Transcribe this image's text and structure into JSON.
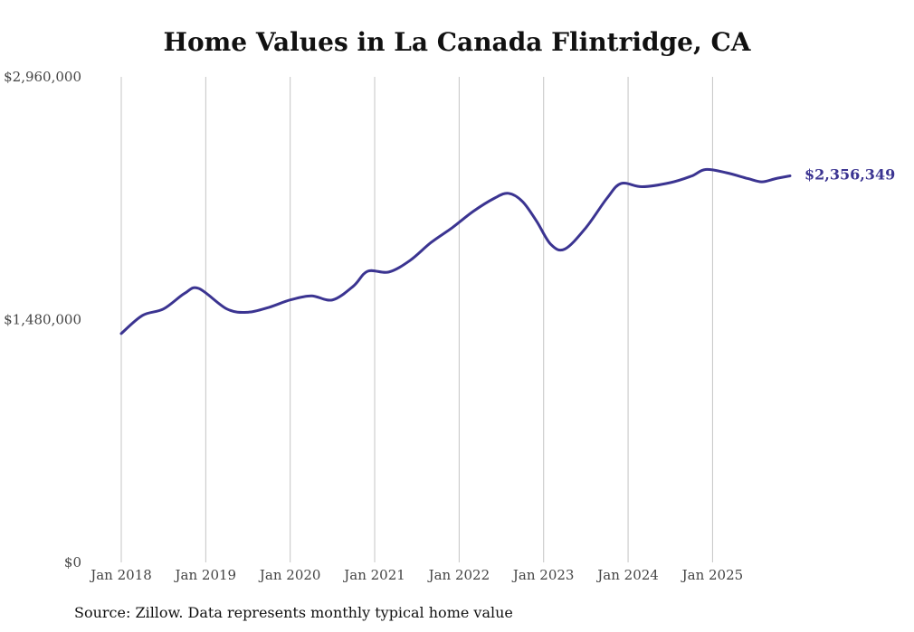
{
  "chart_data": {
    "type": "line",
    "title": "Home Values in La Canada Flintridge, CA",
    "source": "Source: Zillow. Data represents monthly typical home value",
    "xlabel": "",
    "ylabel": "",
    "x_start": 2018.0,
    "x_end": 2025.917,
    "x_ticks": [
      {
        "value": 2018,
        "label": "Jan 2018"
      },
      {
        "value": 2019,
        "label": "Jan 2019"
      },
      {
        "value": 2020,
        "label": "Jan 2020"
      },
      {
        "value": 2021,
        "label": "Jan 2021"
      },
      {
        "value": 2022,
        "label": "Jan 2022"
      },
      {
        "value": 2023,
        "label": "Jan 2023"
      },
      {
        "value": 2024,
        "label": "Jan 2024"
      },
      {
        "value": 2025,
        "label": "Jan 2025"
      }
    ],
    "y_ticks": [
      {
        "value": 0,
        "label": "$0"
      },
      {
        "value": 1480000,
        "label": "$1,480,000"
      },
      {
        "value": 2960000,
        "label": "$2,960,000"
      }
    ],
    "ylim": [
      0,
      2960000
    ],
    "grid": "vertical",
    "color": "#3b3491",
    "end_label": "$2,356,349",
    "series": [
      {
        "name": "Home value",
        "points": [
          [
            2018.0,
            1395000
          ],
          [
            2018.25,
            1505000
          ],
          [
            2018.5,
            1545000
          ],
          [
            2018.75,
            1640000
          ],
          [
            2018.917,
            1670000
          ],
          [
            2019.25,
            1545000
          ],
          [
            2019.5,
            1525000
          ],
          [
            2019.75,
            1555000
          ],
          [
            2020.0,
            1600000
          ],
          [
            2020.25,
            1625000
          ],
          [
            2020.5,
            1600000
          ],
          [
            2020.75,
            1685000
          ],
          [
            2020.917,
            1775000
          ],
          [
            2021.167,
            1770000
          ],
          [
            2021.417,
            1840000
          ],
          [
            2021.667,
            1950000
          ],
          [
            2021.917,
            2040000
          ],
          [
            2022.167,
            2140000
          ],
          [
            2022.417,
            2220000
          ],
          [
            2022.583,
            2250000
          ],
          [
            2022.75,
            2200000
          ],
          [
            2022.917,
            2080000
          ],
          [
            2023.083,
            1940000
          ],
          [
            2023.25,
            1910000
          ],
          [
            2023.5,
            2040000
          ],
          [
            2023.75,
            2220000
          ],
          [
            2023.917,
            2310000
          ],
          [
            2024.167,
            2290000
          ],
          [
            2024.5,
            2315000
          ],
          [
            2024.75,
            2355000
          ],
          [
            2024.917,
            2395000
          ],
          [
            2025.167,
            2375000
          ],
          [
            2025.417,
            2340000
          ],
          [
            2025.583,
            2320000
          ],
          [
            2025.75,
            2340000
          ],
          [
            2025.917,
            2356349
          ]
        ]
      }
    ]
  }
}
